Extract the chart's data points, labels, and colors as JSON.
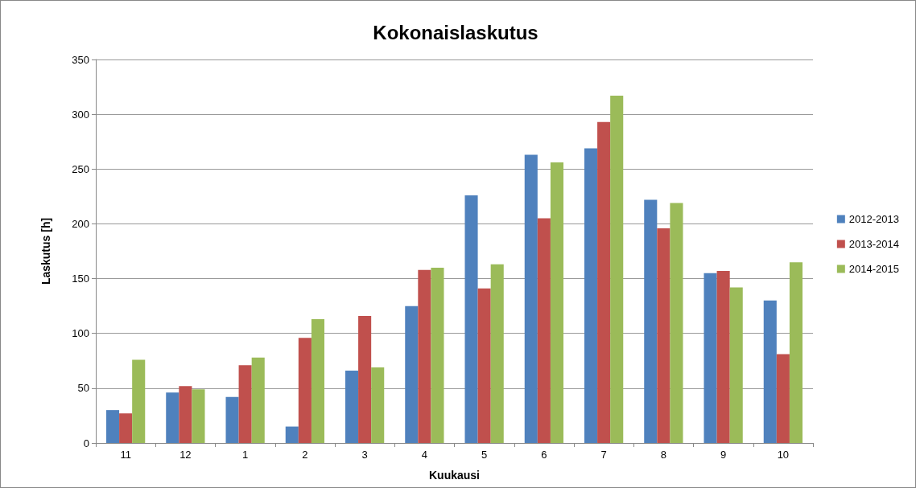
{
  "chart_data": {
    "type": "bar",
    "title": "Kokonaislaskutus",
    "xlabel": "Kuukausi",
    "ylabel": "Laskutus [h]",
    "categories": [
      "11",
      "12",
      "1",
      "2",
      "3",
      "4",
      "5",
      "6",
      "7",
      "8",
      "9",
      "10"
    ],
    "series": [
      {
        "name": "2012-2013",
        "color": "#4f81bd",
        "values": [
          30,
          46,
          42,
          15,
          66,
          125,
          226,
          263,
          269,
          222,
          155,
          130
        ]
      },
      {
        "name": "2013-2014",
        "color": "#c0504d",
        "values": [
          27,
          52,
          71,
          96,
          116,
          158,
          141,
          205,
          293,
          196,
          157,
          81
        ]
      },
      {
        "name": "2014-2015",
        "color": "#9bbb59",
        "values": [
          76,
          49,
          78,
          113,
          69,
          160,
          163,
          256,
          317,
          219,
          142,
          165
        ]
      }
    ],
    "ylim": [
      0,
      350
    ],
    "yticks": [
      0,
      50,
      100,
      150,
      200,
      250,
      300,
      350
    ],
    "grid": "y",
    "legend": "right"
  }
}
